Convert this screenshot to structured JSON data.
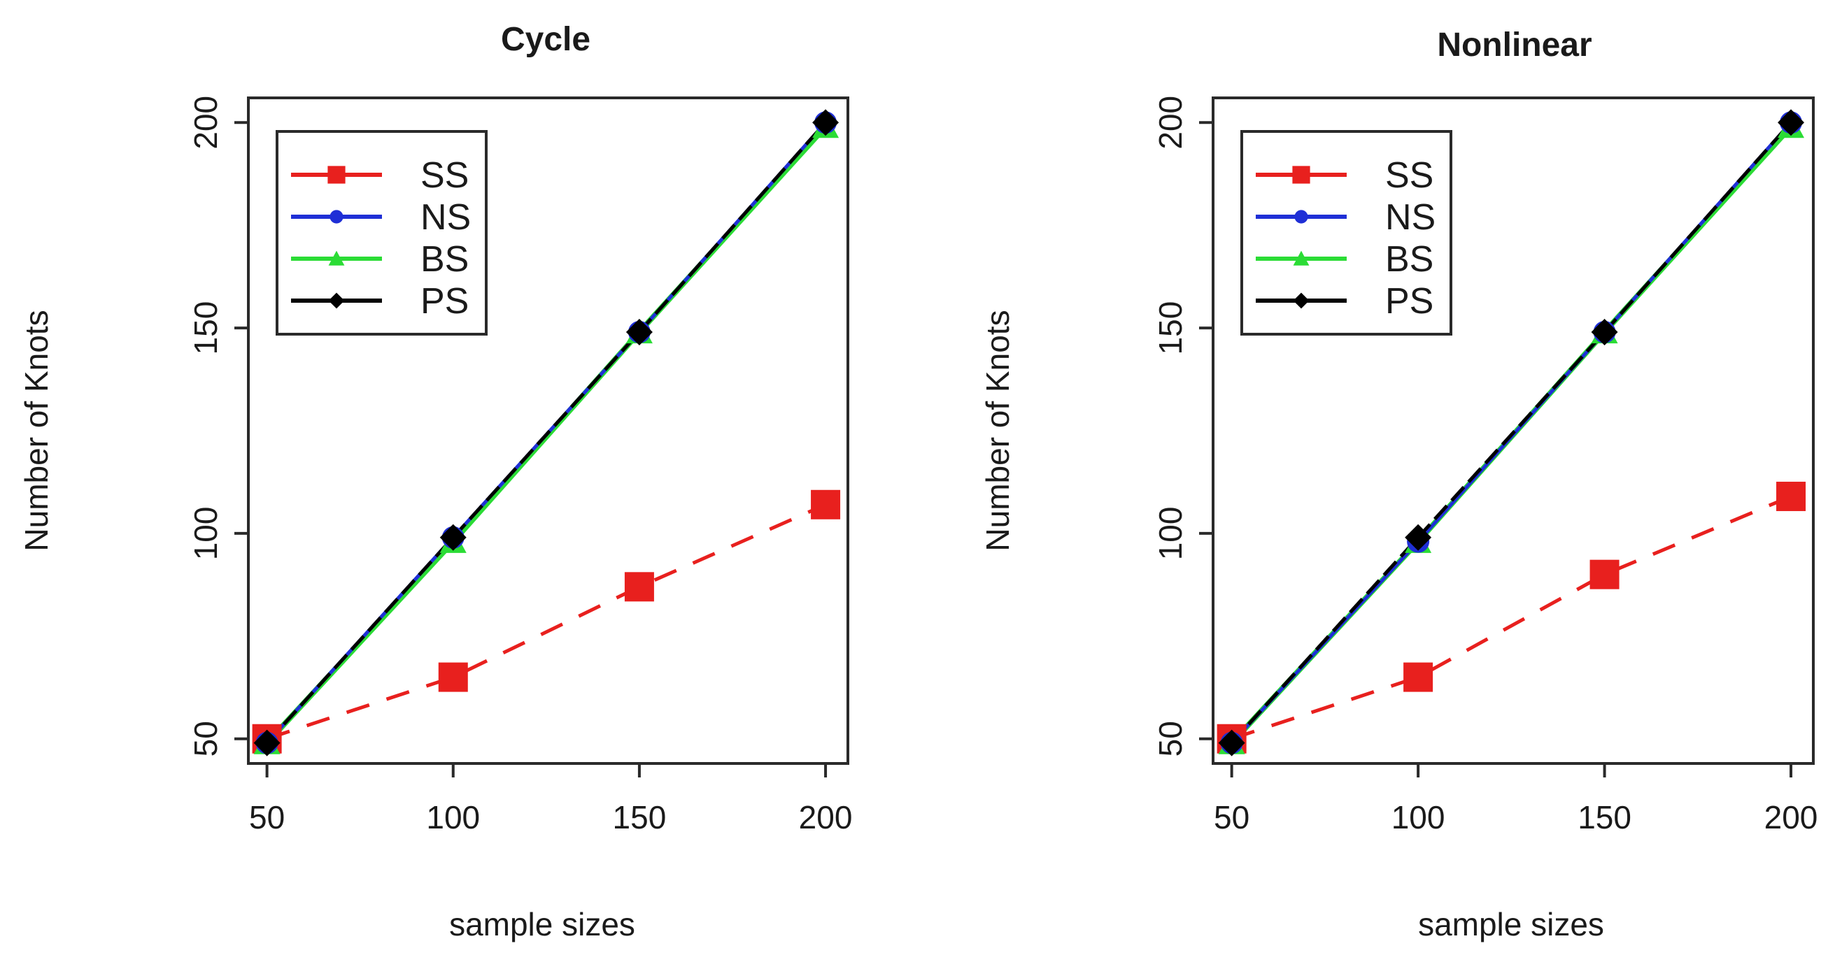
{
  "chart_data": [
    {
      "type": "line",
      "title": "Cycle",
      "xlabel": "sample sizes",
      "ylabel": "Number of Knots",
      "x": [
        50,
        100,
        150,
        200
      ],
      "xticks": [
        "50",
        "100",
        "150",
        "200"
      ],
      "yticks": [
        "50",
        "100",
        "150",
        "200"
      ],
      "xlim": [
        45,
        206
      ],
      "ylim": [
        44,
        206
      ],
      "legend_position": "top-left",
      "series": [
        {
          "name": "SS",
          "values": [
            50,
            65,
            87,
            107
          ],
          "color": "#e8201e",
          "line": "dashed",
          "marker": "square"
        },
        {
          "name": "NS",
          "values": [
            49,
            99,
            149,
            200
          ],
          "color": "#1f2fd6",
          "line": "solid",
          "marker": "circle"
        },
        {
          "name": "BS",
          "values": [
            49,
            98,
            149,
            199
          ],
          "color": "#2bdc35",
          "line": "solid",
          "marker": "triangle"
        },
        {
          "name": "PS",
          "values": [
            49,
            99,
            149,
            200
          ],
          "color": "#000000",
          "line": "dashed",
          "marker": "diamond"
        }
      ]
    },
    {
      "type": "line",
      "title": "Nonlinear",
      "xlabel": "sample sizes",
      "ylabel": "Number of Knots",
      "x": [
        50,
        100,
        150,
        200
      ],
      "xticks": [
        "50",
        "100",
        "150",
        "200"
      ],
      "yticks": [
        "50",
        "100",
        "150",
        "200"
      ],
      "xlim": [
        45,
        206
      ],
      "ylim": [
        44,
        206
      ],
      "legend_position": "top-left",
      "series": [
        {
          "name": "SS",
          "values": [
            50,
            65,
            90,
            109
          ],
          "color": "#e8201e",
          "line": "dashed",
          "marker": "square"
        },
        {
          "name": "NS",
          "values": [
            49,
            98,
            149,
            200
          ],
          "color": "#1f2fd6",
          "line": "solid",
          "marker": "circle"
        },
        {
          "name": "BS",
          "values": [
            49,
            98,
            149,
            199
          ],
          "color": "#2bdc35",
          "line": "solid",
          "marker": "triangle"
        },
        {
          "name": "PS",
          "values": [
            49,
            99,
            149,
            200
          ],
          "color": "#000000",
          "line": "dashed",
          "marker": "diamond"
        }
      ]
    }
  ]
}
